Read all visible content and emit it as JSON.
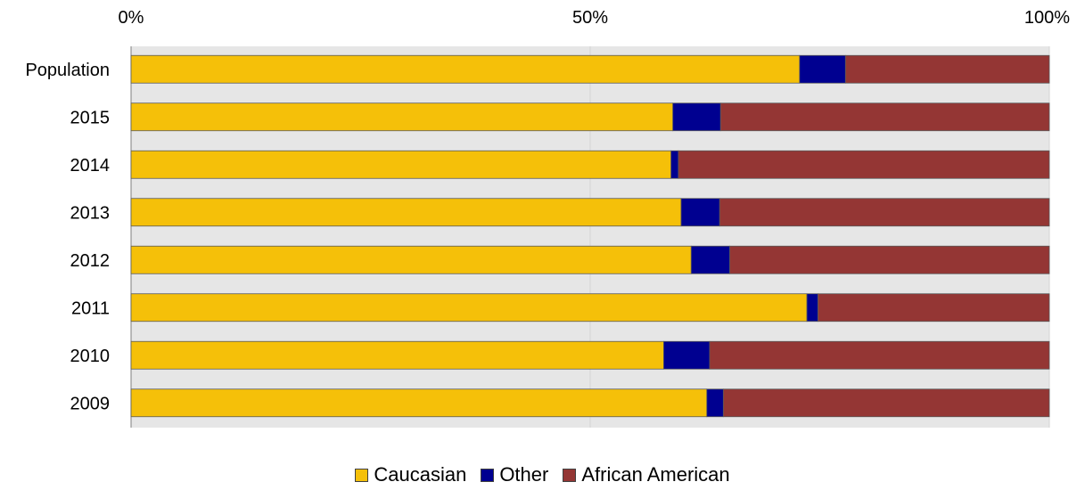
{
  "chart_data": {
    "type": "bar",
    "orientation": "horizontal",
    "stacked": "percent",
    "categories": [
      "Population",
      "2015",
      "2014",
      "2013",
      "2012",
      "2011",
      "2010",
      "2009"
    ],
    "series": [
      {
        "name": "Caucasian",
        "color": "#F5C009",
        "values": [
          72.8,
          59.0,
          58.8,
          59.9,
          61.0,
          73.6,
          58.0,
          62.7
        ]
      },
      {
        "name": "Other",
        "color": "#000090",
        "values": [
          5.0,
          5.2,
          0.8,
          4.2,
          4.2,
          1.2,
          5.0,
          1.8
        ]
      },
      {
        "name": "African American",
        "color": "#943634",
        "values": [
          22.2,
          35.8,
          40.4,
          35.9,
          34.8,
          25.2,
          37.0,
          35.5
        ]
      }
    ],
    "xlim": [
      0,
      100
    ],
    "xticks": [
      "0%",
      "50%",
      "100%"
    ],
    "xtick_values": [
      0,
      50,
      100
    ],
    "x_axis_position": "top",
    "grid": true,
    "plot_background": "#E6E6E6",
    "legend_position": "bottom"
  }
}
